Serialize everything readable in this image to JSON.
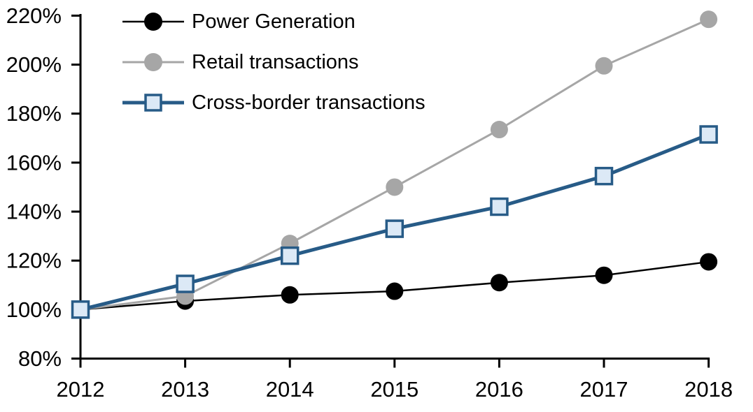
{
  "chart_data": {
    "type": "line",
    "title": "",
    "xlabel": "",
    "ylabel": "",
    "units": "percent, indexed 2012 = 100%",
    "x_categories": [
      "2012",
      "2013",
      "2014",
      "2015",
      "2016",
      "2017",
      "2018"
    ],
    "y_tick_labels": [
      "80%",
      "100%",
      "120%",
      "140%",
      "160%",
      "180%",
      "200%",
      "220%"
    ],
    "ylim": [
      80,
      220
    ],
    "ytick_step": 20,
    "grid": false,
    "legend_position": "top-left",
    "axis_color": "#000000",
    "background_color": "#ffffff",
    "series": [
      {
        "name": "Power Generation",
        "marker": "circle",
        "color": "#000000",
        "marker_fill": "#000000",
        "marker_stroke": "#000000",
        "line_width": 2.5,
        "values": [
          100,
          103.5,
          106,
          107.5,
          111,
          114,
          119.5
        ]
      },
      {
        "name": "Retail transactions",
        "marker": "circle",
        "color": "#a6a6a6",
        "marker_fill": "#a6a6a6",
        "marker_stroke": "#a6a6a6",
        "line_width": 3,
        "values": [
          100,
          105.5,
          127,
          150,
          173.5,
          199.5,
          218.5
        ]
      },
      {
        "name": "Cross-border transactions",
        "marker": "square",
        "color": "#275b87",
        "marker_fill": "#dce9f6",
        "marker_stroke": "#275b87",
        "line_width": 5,
        "values": [
          100,
          110.5,
          122,
          133,
          142,
          154.5,
          171.5
        ]
      }
    ]
  }
}
